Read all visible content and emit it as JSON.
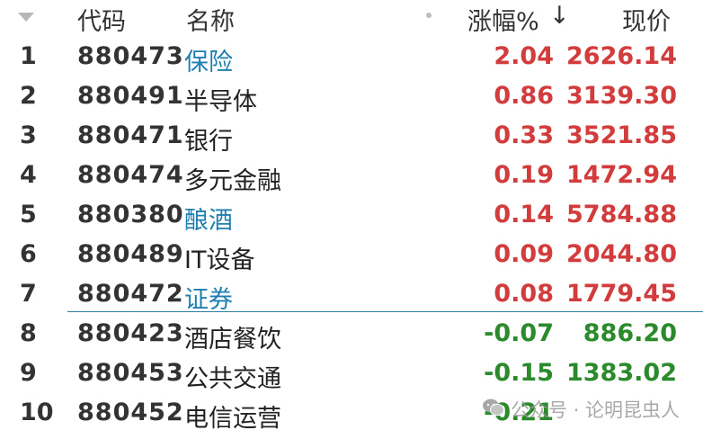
{
  "header": {
    "code_label": "代码",
    "name_label": "名称",
    "change_label": "涨幅%",
    "change_sort_arrow": "↓",
    "price_label": "现价"
  },
  "colors": {
    "up": "#d23c3c",
    "down": "#2b8a2b",
    "link": "#1e7fb0",
    "separator": "#2e7fa6"
  },
  "rows": [
    {
      "idx": "1",
      "code": "880473",
      "name": "保险",
      "chg": "2.04",
      "price": "2626.14",
      "dir": "up",
      "link": true
    },
    {
      "idx": "2",
      "code": "880491",
      "name": "半导体",
      "chg": "0.86",
      "price": "3139.30",
      "dir": "up",
      "link": false
    },
    {
      "idx": "3",
      "code": "880471",
      "name": "银行",
      "chg": "0.33",
      "price": "3521.85",
      "dir": "up",
      "link": false
    },
    {
      "idx": "4",
      "code": "880474",
      "name": "多元金融",
      "chg": "0.19",
      "price": "1472.94",
      "dir": "up",
      "link": false
    },
    {
      "idx": "5",
      "code": "880380",
      "name": "酿酒",
      "chg": "0.14",
      "price": "5784.88",
      "dir": "up",
      "link": true
    },
    {
      "idx": "6",
      "code": "880489",
      "name": "IT设备",
      "chg": "0.09",
      "price": "2044.80",
      "dir": "up",
      "link": false
    },
    {
      "idx": "7",
      "code": "880472",
      "name": "证券",
      "chg": "0.08",
      "price": "1779.45",
      "dir": "up",
      "link": true
    },
    {
      "idx": "8",
      "code": "880423",
      "name": "酒店餐饮",
      "chg": "-0.07",
      "price": "886.20",
      "dir": "down",
      "link": false
    },
    {
      "idx": "9",
      "code": "880453",
      "name": "公共交通",
      "chg": "-0.15",
      "price": "1383.02",
      "dir": "down",
      "link": false
    },
    {
      "idx": "10",
      "code": "880452",
      "name": "电信运营",
      "chg": "-0.21",
      "price": "",
      "dir": "down",
      "link": false
    }
  ],
  "watermark": {
    "text": "公众号 · 论明昆虫人",
    "icon": "wechat-icon"
  }
}
